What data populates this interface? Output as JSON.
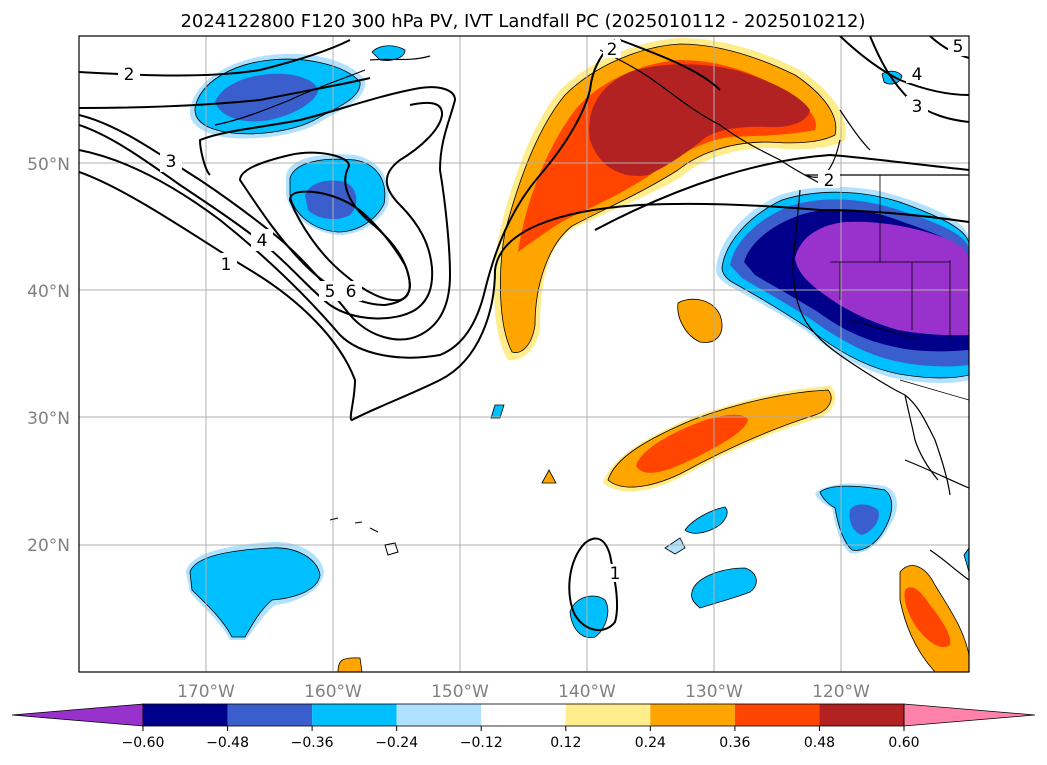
{
  "chart_data": {
    "type": "map-contour",
    "title": "2024122800 F120 300 hPa PV, IVT Landfall PC (2025010112 - 2025010212)",
    "x_ticks": [
      "170°W",
      "160°W",
      "150°W",
      "140°W",
      "130°W",
      "120°W"
    ],
    "y_ticks": [
      "20°N",
      "30°N",
      "40°N",
      "50°N"
    ],
    "lon_range": [
      -180,
      -110
    ],
    "lat_range": [
      10,
      60
    ],
    "grid": true,
    "colorbar": {
      "orientation": "horizontal",
      "extend": "both",
      "tick_labels": [
        "−0.60",
        "−0.48",
        "−0.36",
        "−0.24",
        "−0.12",
        "0.12",
        "0.24",
        "0.36",
        "0.48",
        "0.60"
      ],
      "colors": [
        "#9932CC",
        "#00008B",
        "#3A5FCD",
        "#00BFFF",
        "#B0E2FF",
        "#FFFFFF",
        "#FFEC8B",
        "#FFA500",
        "#FF4500",
        "#B22222",
        "#FF82AB"
      ]
    },
    "pv_contour_labels": [
      "1",
      "2",
      "3",
      "4",
      "5",
      "6"
    ]
  }
}
